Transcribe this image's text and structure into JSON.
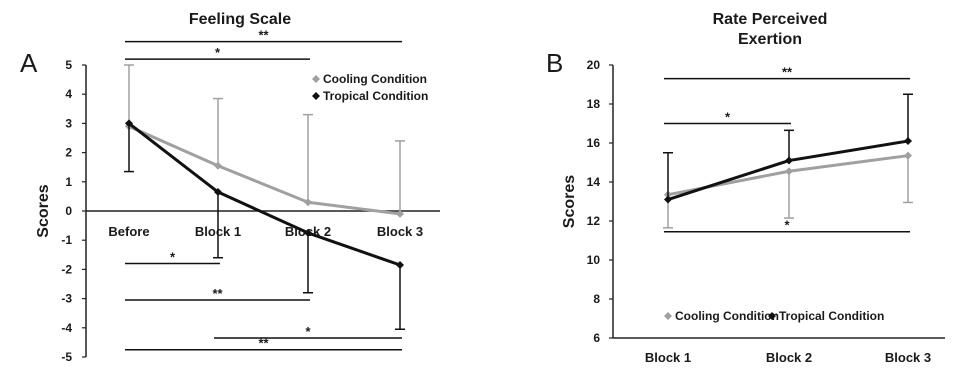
{
  "chart_data": [
    {
      "panel_label": "A",
      "type": "line",
      "title_lines": [
        "Feeling Scale"
      ],
      "ylabel": "Scores",
      "categories": [
        "Before",
        "Block 1",
        "Block 2",
        "Block 3"
      ],
      "ylim": [
        -5,
        5
      ],
      "yticks": [
        -5,
        -4,
        -3,
        -2,
        -1,
        0,
        1,
        2,
        3,
        4,
        5
      ],
      "legend_position": "top-right",
      "series": [
        {
          "name": "Cooling Condition",
          "color": "#a0a0a0",
          "values": [
            2.9,
            1.55,
            0.3,
            -0.1
          ],
          "error": [
            2.1,
            2.3,
            3.0,
            2.5
          ]
        },
        {
          "name": "Tropical Condition",
          "color": "#111111",
          "values": [
            3.0,
            0.65,
            -0.75,
            -1.85
          ],
          "error": [
            1.65,
            2.25,
            2.05,
            2.2
          ]
        }
      ],
      "significance": [
        {
          "from": 0,
          "to": 3,
          "y": 5.8,
          "label": "**"
        },
        {
          "from": 0,
          "to": 2,
          "y": 5.2,
          "label": "*"
        },
        {
          "from": 0,
          "to": 1,
          "y": -1.8,
          "label": "*"
        },
        {
          "from": 0,
          "to": 2,
          "y": -3.05,
          "label": "**"
        },
        {
          "from": 1,
          "to": 3,
          "y": -4.35,
          "label": "*"
        },
        {
          "from": 0,
          "to": 3,
          "y": -4.75,
          "label": "**"
        }
      ]
    },
    {
      "panel_label": "B",
      "type": "line",
      "title_lines": [
        "Rate Perceived",
        "Exertion"
      ],
      "ylabel": "Scores",
      "categories": [
        "Block 1",
        "Block 2",
        "Block 3"
      ],
      "ylim": [
        6,
        20
      ],
      "yticks": [
        6,
        8,
        10,
        12,
        14,
        16,
        18,
        20
      ],
      "legend_position": "bottom",
      "series": [
        {
          "name": "Cooling Condition",
          "color": "#a0a0a0",
          "values": [
            13.35,
            14.55,
            15.35
          ],
          "error": [
            1.7,
            2.4,
            2.4
          ]
        },
        {
          "name": "Tropical Condition",
          "color": "#111111",
          "values": [
            13.1,
            15.1,
            16.1
          ],
          "error": [
            2.4,
            1.55,
            2.4
          ]
        }
      ],
      "significance": [
        {
          "from": 0,
          "to": 2,
          "y": 19.3,
          "label": "**"
        },
        {
          "from": 0,
          "to": 1,
          "y": 17.0,
          "label": "*"
        },
        {
          "from": 0,
          "to": 2,
          "y": 11.45,
          "label": "*"
        }
      ]
    }
  ]
}
